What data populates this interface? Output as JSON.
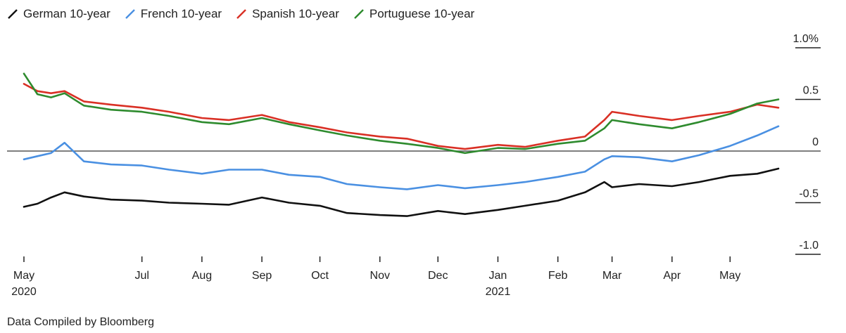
{
  "source": "Data Compiled by Bloomberg",
  "chart_data": {
    "type": "line",
    "ylim": [
      -1.0,
      1.0
    ],
    "yticks": [
      {
        "value": 1.0,
        "label": "1.0%"
      },
      {
        "value": 0.5,
        "label": "0.5"
      },
      {
        "value": 0.0,
        "label": "0"
      },
      {
        "value": -0.5,
        "label": "-0.5"
      },
      {
        "value": -1.0,
        "label": "-1.0"
      }
    ],
    "xticks": [
      {
        "date": "2020-05-01",
        "label": "May",
        "year": "2020"
      },
      {
        "date": "2020-07-01",
        "label": "Jul",
        "year": ""
      },
      {
        "date": "2020-08-01",
        "label": "Aug",
        "year": ""
      },
      {
        "date": "2020-09-01",
        "label": "Sep",
        "year": ""
      },
      {
        "date": "2020-10-01",
        "label": "Oct",
        "year": ""
      },
      {
        "date": "2020-11-01",
        "label": "Nov",
        "year": ""
      },
      {
        "date": "2020-12-01",
        "label": "Dec",
        "year": ""
      },
      {
        "date": "2021-01-01",
        "label": "Jan",
        "year": "2021"
      },
      {
        "date": "2021-02-01",
        "label": "Feb",
        "year": ""
      },
      {
        "date": "2021-03-01",
        "label": "Mar",
        "year": ""
      },
      {
        "date": "2021-04-01",
        "label": "Apr",
        "year": ""
      },
      {
        "date": "2021-05-01",
        "label": "May",
        "year": ""
      }
    ],
    "zero_line": true,
    "legend": "top-left",
    "x": [
      "2020-05-01",
      "2020-05-08",
      "2020-05-15",
      "2020-05-22",
      "2020-06-01",
      "2020-06-15",
      "2020-07-01",
      "2020-07-15",
      "2020-08-01",
      "2020-08-15",
      "2020-09-01",
      "2020-09-15",
      "2020-10-01",
      "2020-10-15",
      "2020-11-01",
      "2020-11-15",
      "2020-12-01",
      "2020-12-15",
      "2021-01-01",
      "2021-01-15",
      "2021-02-01",
      "2021-02-15",
      "2021-02-25",
      "2021-03-01",
      "2021-03-15",
      "2021-04-01",
      "2021-04-15",
      "2021-05-01",
      "2021-05-15",
      "2021-05-26"
    ],
    "series": [
      {
        "name": "German 10-year",
        "color": "#111111",
        "values": [
          -0.54,
          -0.51,
          -0.45,
          -0.4,
          -0.44,
          -0.47,
          -0.48,
          -0.5,
          -0.51,
          -0.52,
          -0.45,
          -0.5,
          -0.53,
          -0.6,
          -0.62,
          -0.63,
          -0.58,
          -0.61,
          -0.57,
          -0.53,
          -0.48,
          -0.4,
          -0.3,
          -0.35,
          -0.32,
          -0.34,
          -0.3,
          -0.24,
          -0.22,
          -0.17
        ]
      },
      {
        "name": "French 10-year",
        "color": "#4a90e2",
        "values": [
          -0.08,
          -0.05,
          -0.02,
          0.08,
          -0.1,
          -0.13,
          -0.14,
          -0.18,
          -0.22,
          -0.18,
          -0.18,
          -0.23,
          -0.25,
          -0.32,
          -0.35,
          -0.37,
          -0.33,
          -0.36,
          -0.33,
          -0.3,
          -0.25,
          -0.2,
          -0.08,
          -0.05,
          -0.06,
          -0.1,
          -0.04,
          0.05,
          0.15,
          0.24
        ]
      },
      {
        "name": "Spanish 10-year",
        "color": "#d93025",
        "values": [
          0.65,
          0.58,
          0.56,
          0.58,
          0.48,
          0.45,
          0.42,
          0.38,
          0.32,
          0.3,
          0.35,
          0.28,
          0.23,
          0.18,
          0.14,
          0.12,
          0.05,
          0.02,
          0.06,
          0.04,
          0.1,
          0.14,
          0.3,
          0.38,
          0.34,
          0.3,
          0.34,
          0.38,
          0.45,
          0.42
        ]
      },
      {
        "name": "Portuguese 10-year",
        "color": "#2e8b2e",
        "values": [
          0.75,
          0.55,
          0.52,
          0.56,
          0.44,
          0.4,
          0.38,
          0.34,
          0.28,
          0.26,
          0.32,
          0.26,
          0.2,
          0.15,
          0.1,
          0.07,
          0.03,
          -0.02,
          0.03,
          0.02,
          0.07,
          0.1,
          0.22,
          0.3,
          0.26,
          0.22,
          0.28,
          0.36,
          0.46,
          0.5
        ]
      }
    ]
  }
}
